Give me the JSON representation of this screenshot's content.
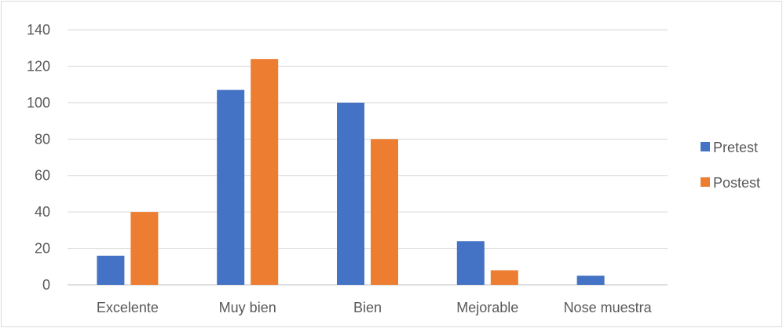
{
  "chart_data": {
    "type": "bar",
    "categories": [
      "Excelente",
      "Muy bien",
      "Bien",
      "Mejorable",
      "Nose muestra"
    ],
    "series": [
      {
        "name": "Pretest",
        "values": [
          16,
          107,
          100,
          24,
          5
        ],
        "color": "#4472C4"
      },
      {
        "name": "Postest",
        "values": [
          40,
          124,
          80,
          8,
          0
        ],
        "color": "#ED7D31"
      }
    ],
    "y_ticks": [
      "0",
      "20",
      "40",
      "60",
      "80",
      "100",
      "120",
      "140"
    ],
    "ylim": [
      0,
      140
    ],
    "grid": true,
    "legend_position": "right",
    "title": "",
    "xlabel": "",
    "ylabel": ""
  }
}
